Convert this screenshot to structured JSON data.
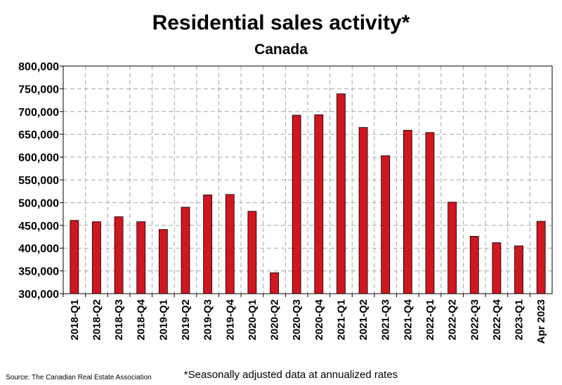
{
  "chart_data": {
    "type": "bar",
    "title": "Residential sales activity*",
    "subtitle": "Canada",
    "categories": [
      "2018-Q1",
      "2018-Q2",
      "2018-Q3",
      "2018-Q4",
      "2019-Q1",
      "2019-Q2",
      "2019-Q3",
      "2019-Q4",
      "2020-Q1",
      "2020-Q2",
      "2020-Q3",
      "2020-Q4",
      "2021-Q1",
      "2021-Q2",
      "2021-Q3",
      "2021-Q4",
      "2022-Q1",
      "2022-Q2",
      "2022-Q3",
      "2022-Q4",
      "2023-Q1",
      "Apr 2023"
    ],
    "values": [
      461000,
      458000,
      469000,
      458000,
      441000,
      490000,
      517000,
      518000,
      481000,
      346000,
      692000,
      693000,
      739000,
      665000,
      603000,
      659000,
      654000,
      501000,
      426000,
      412000,
      405000,
      459000
    ],
    "ylim": [
      300000,
      800000
    ],
    "yticks": [
      "300,000",
      "350,000",
      "400,000",
      "450,000",
      "500,000",
      "550,000",
      "600,000",
      "650,000",
      "700,000",
      "750,000",
      "800,000"
    ],
    "ytick_values": [
      300000,
      350000,
      400000,
      450000,
      500000,
      550000,
      600000,
      650000,
      700000,
      750000,
      800000
    ],
    "grid": true,
    "bar_color": "#d0161e",
    "source": "Source: The Canadian Real Estate Association",
    "footnote": "*Seasonally adjusted data at annualized rates"
  }
}
